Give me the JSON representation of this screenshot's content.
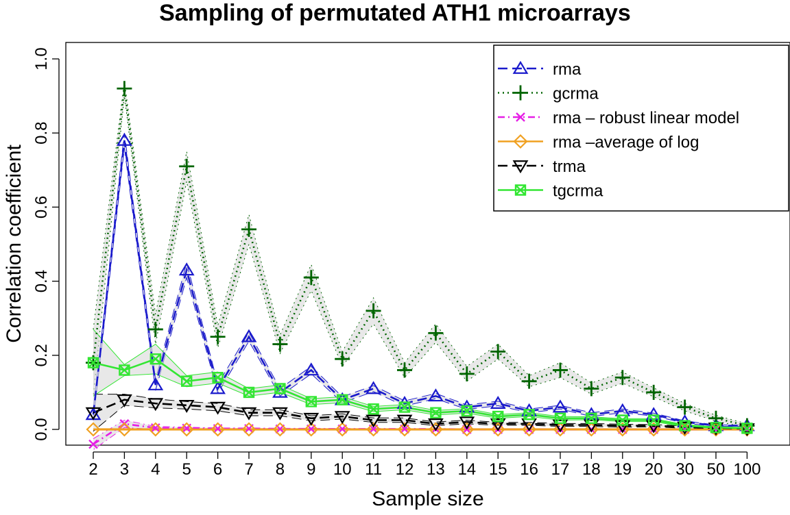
{
  "chart_data": {
    "type": "line",
    "title": "Sampling of permutated ATH1 microarrays",
    "xlabel": "Sample size",
    "ylabel": "Correlation coefficient",
    "categories": [
      "2",
      "3",
      "4",
      "5",
      "6",
      "7",
      "8",
      "9",
      "10",
      "11",
      "12",
      "13",
      "14",
      "15",
      "16",
      "17",
      "18",
      "19",
      "20",
      "30",
      "50",
      "100"
    ],
    "ylim": [
      0,
      1.0
    ],
    "yticks": [
      "0.0",
      "0.2",
      "0.4",
      "0.6",
      "0.8",
      "1.0"
    ],
    "grid": false,
    "legend_position": "top-right",
    "series": [
      {
        "name": "rma",
        "color": "#1a1acc",
        "marker": "triangle-up",
        "line": "dashed",
        "values": [
          0.04,
          0.78,
          0.12,
          0.43,
          0.11,
          0.25,
          0.1,
          0.16,
          0.08,
          0.11,
          0.07,
          0.09,
          0.06,
          0.07,
          0.05,
          0.06,
          0.04,
          0.05,
          0.04,
          0.02,
          0.01,
          0.01
        ],
        "band": [
          0.015,
          0.02,
          0.015,
          0.02,
          0.012,
          0.012,
          0.01,
          0.01,
          0.008,
          0.008,
          0.007,
          0.007,
          0.006,
          0.006,
          0.005,
          0.005,
          0.005,
          0.005,
          0.004,
          0.003,
          0.002,
          0.002
        ]
      },
      {
        "name": "gcrma",
        "color": "#006400",
        "marker": "plus",
        "line": "dotted",
        "values": [
          0.18,
          0.92,
          0.27,
          0.71,
          0.25,
          0.54,
          0.23,
          0.41,
          0.19,
          0.32,
          0.16,
          0.26,
          0.15,
          0.21,
          0.13,
          0.16,
          0.11,
          0.14,
          0.1,
          0.06,
          0.03,
          0.01
        ],
        "band": [
          0.09,
          0.02,
          0.04,
          0.04,
          0.03,
          0.04,
          0.025,
          0.035,
          0.02,
          0.035,
          0.02,
          0.025,
          0.02,
          0.02,
          0.015,
          0.02,
          0.015,
          0.015,
          0.012,
          0.01,
          0.008,
          0.005
        ]
      },
      {
        "name": "rma – robust linear model",
        "color": "#e61ee6",
        "marker": "cross",
        "line": "dashdot",
        "values": [
          -0.04,
          0.015,
          0.004,
          0.003,
          0.002,
          0.002,
          0.001,
          0.001,
          0.001,
          0.001,
          0.001,
          0.001,
          0.0,
          0.0,
          0.0,
          0.0,
          0.0,
          0.0,
          0.0,
          0.0,
          0.0,
          0.0
        ],
        "band": [
          0.015,
          0.01,
          0.004,
          0.003,
          0.002,
          0.002,
          0.002,
          0.002,
          0.001,
          0.001,
          0.001,
          0.001,
          0.001,
          0.001,
          0.001,
          0.001,
          0.001,
          0.001,
          0.001,
          0.001,
          0.001,
          0.001
        ]
      },
      {
        "name": "rma –average of log",
        "color": "#f0a020",
        "marker": "diamond",
        "line": "solid",
        "values": [
          0.0,
          0.0,
          0.0,
          0.0,
          0.0,
          0.0,
          0.0,
          0.0,
          0.0,
          0.0,
          0.0,
          0.0,
          0.0,
          0.0,
          0.0,
          0.0,
          0.0,
          0.0,
          0.0,
          0.0,
          0.0,
          0.0
        ],
        "band": [
          0.002,
          0.002,
          0.002,
          0.002,
          0.002,
          0.002,
          0.002,
          0.002,
          0.002,
          0.002,
          0.002,
          0.002,
          0.002,
          0.002,
          0.002,
          0.002,
          0.002,
          0.002,
          0.002,
          0.002,
          0.002,
          0.002
        ]
      },
      {
        "name": "trma",
        "color": "#000000",
        "marker": "triangle-down",
        "line": "dashed",
        "values": [
          0.045,
          0.08,
          0.07,
          0.065,
          0.06,
          0.045,
          0.045,
          0.03,
          0.035,
          0.025,
          0.025,
          0.015,
          0.02,
          0.015,
          0.015,
          0.012,
          0.012,
          0.01,
          0.01,
          0.006,
          0.004,
          0.002
        ],
        "band": [
          0.05,
          0.015,
          0.012,
          0.01,
          0.01,
          0.008,
          0.008,
          0.007,
          0.007,
          0.006,
          0.006,
          0.005,
          0.005,
          0.004,
          0.004,
          0.004,
          0.004,
          0.004,
          0.003,
          0.003,
          0.002,
          0.002
        ]
      },
      {
        "name": "tgcrma",
        "color": "#33e633",
        "marker": "square-x",
        "line": "solid",
        "values": [
          0.18,
          0.16,
          0.19,
          0.13,
          0.14,
          0.1,
          0.11,
          0.075,
          0.08,
          0.055,
          0.06,
          0.045,
          0.05,
          0.035,
          0.04,
          0.03,
          0.03,
          0.025,
          0.025,
          0.01,
          0.005,
          0.003
        ],
        "band": [
          0.09,
          0.015,
          0.04,
          0.015,
          0.015,
          0.01,
          0.01,
          0.008,
          0.008,
          0.007,
          0.007,
          0.006,
          0.006,
          0.005,
          0.005,
          0.005,
          0.004,
          0.004,
          0.004,
          0.003,
          0.002,
          0.002
        ]
      }
    ]
  }
}
